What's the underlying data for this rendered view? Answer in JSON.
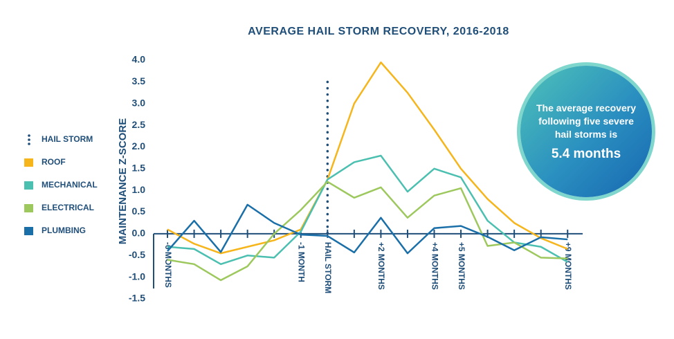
{
  "chart_data": {
    "type": "line",
    "title": "AVERAGE HAIL STORM RECOVERY, 2016-2018",
    "y_label": "MAINTENANCE Z-SCORE",
    "categories": [
      "-6 MONTHS",
      null,
      null,
      null,
      null,
      "-1 MONTH",
      "HAIL STORM",
      null,
      "+2 MONTHS",
      null,
      "+4 MONTHS",
      "+5 MONTHS",
      null,
      null,
      null,
      "+9 MONTHS"
    ],
    "marker_name": "HAIL STORM",
    "marker_color": "#1f4e79",
    "series": [
      {
        "name": "ROOF",
        "color": "#f5b51b",
        "values": [
          0.1,
          -0.23,
          -0.45,
          -0.3,
          -0.15,
          0.1,
          1.25,
          3.0,
          3.95,
          3.25,
          2.4,
          1.5,
          0.8,
          0.25,
          -0.1,
          -0.35
        ]
      },
      {
        "name": "MECHANICAL",
        "color": "#4bbfb0",
        "values": [
          -0.3,
          -0.35,
          -0.7,
          -0.5,
          -0.55,
          0.05,
          1.25,
          1.65,
          1.8,
          0.97,
          1.5,
          1.3,
          0.3,
          -0.2,
          -0.3,
          -0.65
        ]
      },
      {
        "name": "ELECTRICAL",
        "color": "#9dc85d",
        "values": [
          -0.6,
          -0.7,
          -1.07,
          -0.75,
          0.0,
          0.55,
          1.2,
          0.83,
          1.07,
          0.37,
          0.88,
          1.05,
          -0.28,
          -0.2,
          -0.55,
          -0.57
        ]
      },
      {
        "name": "PLUMBING",
        "color": "#1a6fa8",
        "values": [
          -0.4,
          0.3,
          -0.42,
          0.67,
          0.25,
          -0.02,
          -0.05,
          -0.43,
          0.37,
          -0.45,
          0.13,
          0.18,
          -0.07,
          -0.38,
          -0.08,
          -0.13
        ]
      }
    ],
    "ylim": [
      -1.5,
      4.0
    ],
    "yticks": [
      -1.5,
      {
        "value": -1,
        "label": "-1.0"
      },
      -0.5,
      {
        "value": 0,
        "label": "0.0"
      },
      0.5,
      {
        "value": 1,
        "label": "1.0"
      },
      1.5,
      {
        "value": 2,
        "label": "2.0"
      },
      2.5,
      {
        "value": 3,
        "label": "3.0"
      },
      3.5,
      {
        "value": 4,
        "label": "4.0"
      }
    ],
    "annotation": {
      "text": "The average recovery following five severe hail storms is",
      "highlight": "5.4 months"
    }
  }
}
